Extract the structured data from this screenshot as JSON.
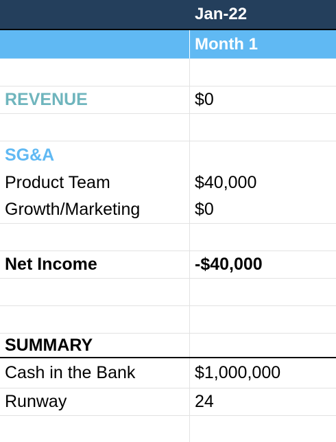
{
  "header": {
    "month_label": "Jan-22",
    "period_label": "Month 1"
  },
  "revenue": {
    "label": "REVENUE",
    "value": "$0"
  },
  "sga": {
    "label": "SG&A",
    "items": [
      {
        "label": "Product Team",
        "value": "$40,000"
      },
      {
        "label": "Growth/Marketing",
        "value": "$0"
      }
    ]
  },
  "net_income": {
    "label": "Net Income",
    "value": "-$40,000"
  },
  "summary": {
    "label": "SUMMARY",
    "items": [
      {
        "label": "Cash in the Bank",
        "value": "$1,000,000"
      },
      {
        "label": "Runway",
        "value": "24"
      }
    ]
  },
  "colors": {
    "header_dark": "#243f5c",
    "header_light": "#60b9f3",
    "revenue_teal": "#6fb5bd",
    "sga_blue": "#60b9f3"
  }
}
